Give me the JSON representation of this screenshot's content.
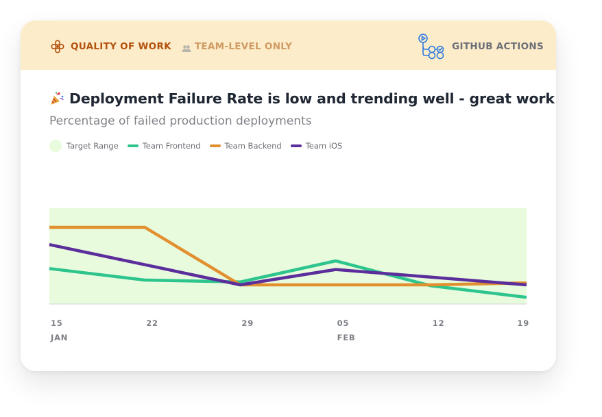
{
  "header": {
    "category_label": "QUALITY OF WORK",
    "category_icon": "flower-icon",
    "scope_label": "TEAM-LEVEL ONLY",
    "scope_icon": "users-icon",
    "source_label": "GITHUB ACTIONS",
    "source_icon": "github-actions-icon",
    "background_color": "#fcecc9"
  },
  "title": {
    "icon": "party-popper-icon",
    "text": "Deployment Failure Rate is low and trending well - great work!"
  },
  "subtitle": "Percentage of failed production deployments",
  "legend": [
    {
      "label": "Target Range",
      "color": "#e8fbdc",
      "kind": "area"
    },
    {
      "label": "Team Frontend",
      "color": "#2dc48d",
      "kind": "line"
    },
    {
      "label": "Team Backend",
      "color": "#e2902f",
      "kind": "line"
    },
    {
      "label": "Team iOS",
      "color": "#5b2e9c",
      "kind": "line"
    }
  ],
  "chart_data": {
    "type": "line",
    "x": [
      "15 JAN",
      "22",
      "29",
      "05 FEB",
      "12",
      "19"
    ],
    "tick_labels": [
      {
        "day": "15",
        "month": "JAN"
      },
      {
        "day": "22",
        "month": ""
      },
      {
        "day": "29",
        "month": ""
      },
      {
        "day": "05",
        "month": "FEB"
      },
      {
        "day": "12",
        "month": ""
      },
      {
        "day": "19",
        "month": ""
      }
    ],
    "ylim": [
      0,
      100
    ],
    "target_range": [
      0,
      100
    ],
    "grid": false,
    "legend_position": "top-left",
    "series": [
      {
        "name": "Team Frontend",
        "color": "#2dc48d",
        "values": [
          37,
          25,
          23,
          45,
          19,
          7
        ]
      },
      {
        "name": "Team Backend",
        "color": "#e2902f",
        "values": [
          80,
          80,
          20,
          20,
          20,
          22
        ]
      },
      {
        "name": "Team iOS",
        "color": "#5b2e9c",
        "values": [
          62,
          41,
          20,
          36,
          28,
          20
        ]
      }
    ]
  }
}
